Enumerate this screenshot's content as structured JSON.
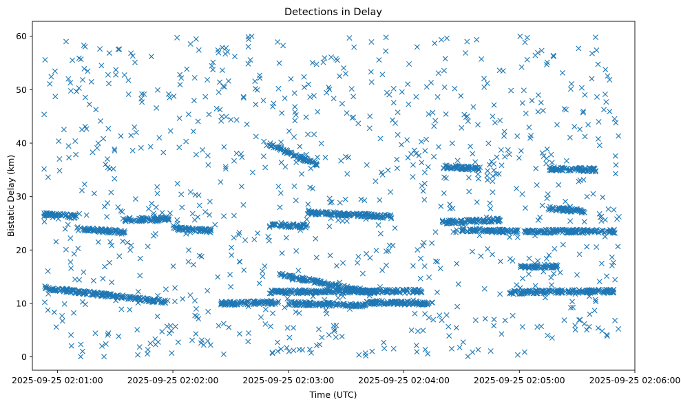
{
  "chart_data": {
    "type": "scatter",
    "title": "Detections in Delay",
    "xlabel": "Time (UTC)",
    "ylabel": "Bistatic Delay (km)",
    "marker": "x",
    "color": "#1f77b4",
    "grid": false,
    "xlim": [
      "2025-09-25 02:00:47",
      "2025-09-25 02:06:00"
    ],
    "ylim": [
      -2.5,
      62.8
    ],
    "xticks": [
      "2025-09-25 02:01:00",
      "2025-09-25 02:02:00",
      "2025-09-25 02:03:00",
      "2025-09-25 02:04:00",
      "2025-09-25 02:05:00",
      "2025-09-25 02:06:00"
    ],
    "yticks": [
      0,
      10,
      20,
      30,
      40,
      50,
      60
    ],
    "tracks": [
      {
        "start": "2025-09-25 02:00:53",
        "end": "2025-09-25 02:01:58",
        "delay_start": 12.9,
        "delay_end": 10.2
      },
      {
        "start": "2025-09-25 02:00:53",
        "end": "2025-09-25 02:01:10",
        "delay_start": 26.8,
        "delay_end": 26.2
      },
      {
        "start": "2025-09-25 02:01:10",
        "end": "2025-09-25 02:01:35",
        "delay_start": 24.0,
        "delay_end": 23.3
      },
      {
        "start": "2025-09-25 02:01:35",
        "end": "2025-09-25 02:01:58",
        "delay_start": 25.6,
        "delay_end": 25.9
      },
      {
        "start": "2025-09-25 02:02:00",
        "end": "2025-09-25 02:02:20",
        "delay_start": 24.0,
        "delay_end": 23.6
      },
      {
        "start": "2025-09-25 02:02:25",
        "end": "2025-09-25 02:02:55",
        "delay_start": 10.0,
        "delay_end": 10.2
      },
      {
        "start": "2025-09-25 02:02:50",
        "end": "2025-09-25 02:03:15",
        "delay_start": 39.8,
        "delay_end": 36.0
      },
      {
        "start": "2025-09-25 02:02:55",
        "end": "2025-09-25 02:03:45",
        "delay_start": 15.4,
        "delay_end": 12.0
      },
      {
        "start": "2025-09-25 02:02:50",
        "end": "2025-09-25 02:04:10",
        "delay_start": 12.2,
        "delay_end": 12.3
      },
      {
        "start": "2025-09-25 02:03:00",
        "end": "2025-09-25 02:03:40",
        "delay_start": 10.0,
        "delay_end": 9.7
      },
      {
        "start": "2025-09-25 02:02:50",
        "end": "2025-09-25 02:03:10",
        "delay_start": 24.6,
        "delay_end": 24.5
      },
      {
        "start": "2025-09-25 02:03:10",
        "end": "2025-09-25 02:03:55",
        "delay_start": 27.0,
        "delay_end": 26.2
      },
      {
        "start": "2025-09-25 02:03:40",
        "end": "2025-09-25 02:04:15",
        "delay_start": 10.2,
        "delay_end": 10.0
      },
      {
        "start": "2025-09-25 02:04:20",
        "end": "2025-09-25 02:04:50",
        "delay_start": 25.2,
        "delay_end": 25.6
      },
      {
        "start": "2025-09-25 02:04:20",
        "end": "2025-09-25 02:04:40",
        "delay_start": 35.6,
        "delay_end": 35.2
      },
      {
        "start": "2025-09-25 02:04:30",
        "end": "2025-09-25 02:05:00",
        "delay_start": 23.8,
        "delay_end": 23.4
      },
      {
        "start": "2025-09-25 02:04:55",
        "end": "2025-09-25 02:05:50",
        "delay_start": 12.1,
        "delay_end": 12.3
      },
      {
        "start": "2025-09-25 02:05:00",
        "end": "2025-09-25 02:05:50",
        "delay_start": 23.5,
        "delay_end": 23.5
      },
      {
        "start": "2025-09-25 02:05:15",
        "end": "2025-09-25 02:05:40",
        "delay_start": 35.2,
        "delay_end": 35.0
      },
      {
        "start": "2025-09-25 02:05:00",
        "end": "2025-09-25 02:05:20",
        "delay_start": 16.8,
        "delay_end": 17.0
      },
      {
        "start": "2025-09-25 02:05:15",
        "end": "2025-09-25 02:05:35",
        "delay_start": 27.8,
        "delay_end": 27.2
      }
    ],
    "scattered_detections": {
      "count": 900,
      "delay_range": [
        0,
        60
      ]
    }
  }
}
